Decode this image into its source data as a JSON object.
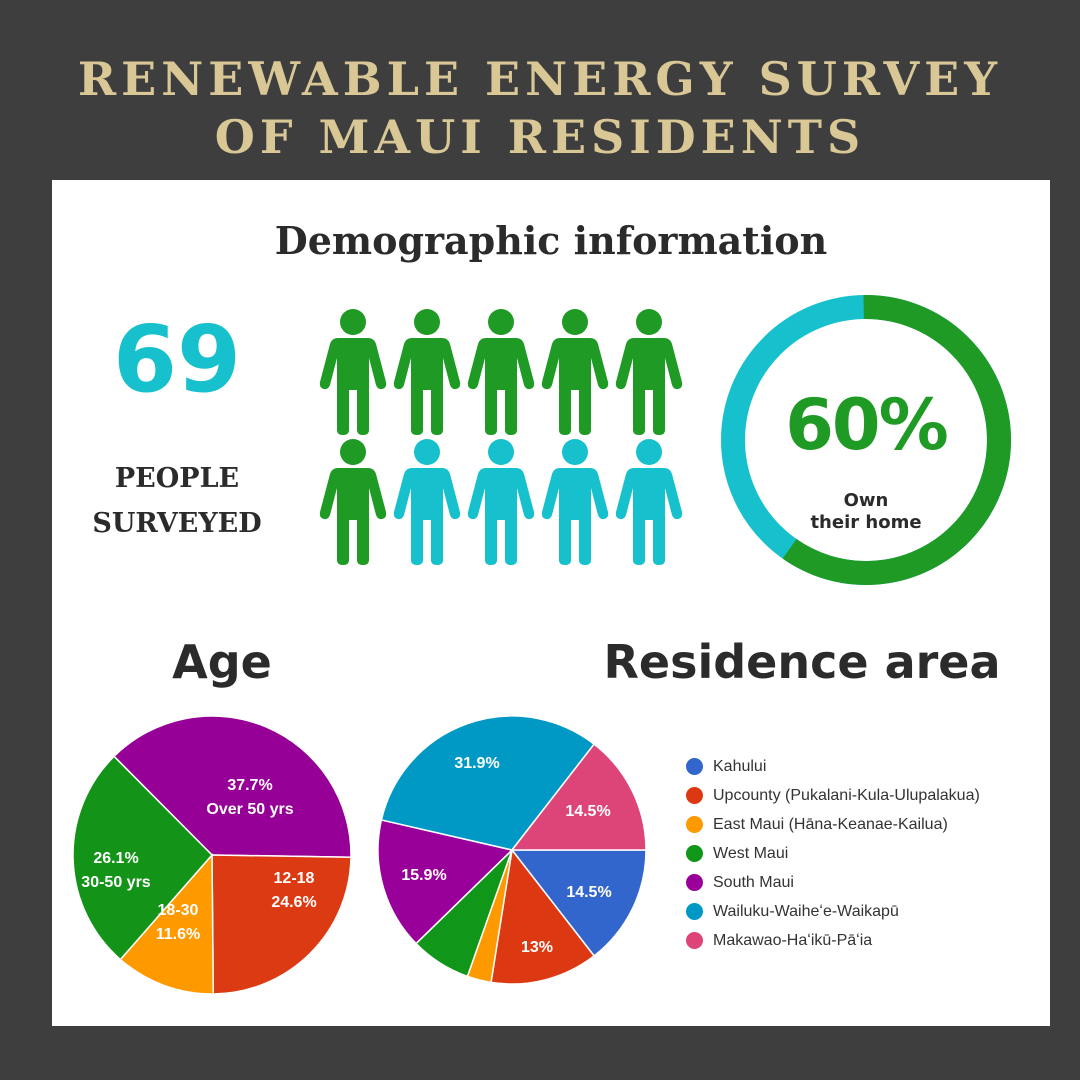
{
  "title": "RENEWABLE ENERGY SURVEY OF MAUI RESIDENTS",
  "title_lines": [
    "RENEWABLE ENERGY SURVEY",
    "OF MAUI RESIDENTS"
  ],
  "section_title": "Demographic information",
  "surveyed": {
    "count": "69",
    "label_lines": [
      "PEOPLE",
      "SURVEYED"
    ]
  },
  "people_icons": {
    "total": 10,
    "green": 6,
    "colors": {
      "green": "#1f9a25",
      "teal": "#16c0cc"
    }
  },
  "homeownership": {
    "value_text": "60%",
    "fraction": 0.6,
    "caption_lines": [
      "Own",
      "their home"
    ],
    "colors": {
      "owned": "#1f9a25",
      "rest": "#16c0cc"
    }
  },
  "chart_data": [
    {
      "type": "pie",
      "title": "Age",
      "slices": [
        {
          "value": 37.7,
          "label": "37.7%",
          "sublabel": "Over 50 yrs",
          "color": "#970097"
        },
        {
          "value": 24.6,
          "label": "24.6%",
          "sublabel": "12-18",
          "color": "#dc3a12"
        },
        {
          "value": 11.6,
          "label": "11.6%",
          "sublabel": "18-30",
          "color": "#ff9900"
        },
        {
          "value": 26.1,
          "label": "26.1%",
          "sublabel": "30-50 yrs",
          "color": "#139419"
        }
      ]
    },
    {
      "type": "pie",
      "title": "Residence area",
      "slices": [
        {
          "name": "Kahului",
          "value": 14.5,
          "label": "14.5%",
          "color": "#3366cc"
        },
        {
          "name": "Upcounty (Pukalani-Kula-Ulupalakua)",
          "value": 13.0,
          "label": "13%",
          "color": "#dc3912"
        },
        {
          "name": "East Maui (Hāna-Keanae-Kailua)",
          "value": 2.9,
          "label": "",
          "color": "#ff9900"
        },
        {
          "name": "West Maui",
          "value": 7.3,
          "label": "",
          "color": "#109618"
        },
        {
          "name": "South Maui",
          "value": 15.9,
          "label": "15.9%",
          "color": "#990099"
        },
        {
          "name": "Wailuku-Waiheʻe-Waikapū",
          "value": 31.9,
          "label": "31.9%",
          "color": "#0099c6"
        },
        {
          "name": "Makawao-Haʻikū-Pāʻia",
          "value": 14.5,
          "label": "14.5%",
          "color": "#dd4477"
        }
      ],
      "legend_position": "right"
    }
  ]
}
